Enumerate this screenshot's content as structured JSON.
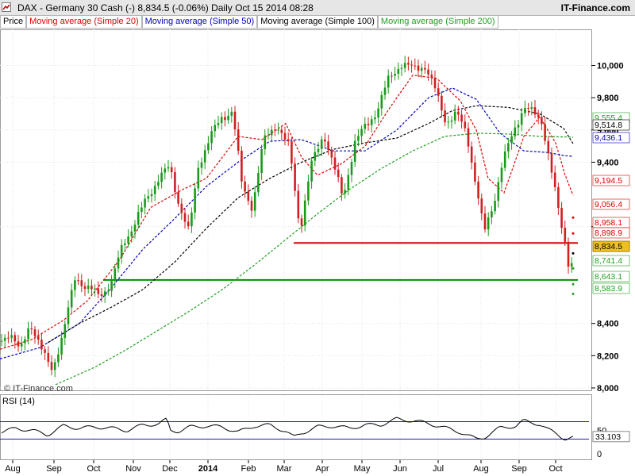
{
  "header": {
    "title": "DAX - Germany 30 Cash (-)    8,834.5 (-0.06%)    Daily  Oct 15 2014 08:28",
    "brand": "IT-Finance.com"
  },
  "legend": [
    {
      "label": "Price",
      "color": "#000000"
    },
    {
      "label": "Moving average (Simple 20)",
      "color": "#e00000"
    },
    {
      "label": "Moving average (Simple 50)",
      "color": "#0000c0"
    },
    {
      "label": "Moving average (Simple 100)",
      "color": "#000000"
    },
    {
      "label": "Moving average (Simple 200)",
      "color": "#20a020"
    }
  ],
  "watermark": "© IT-Finance.com",
  "rsi": {
    "label": "RSI (14)",
    "value_label": "33.103",
    "levels": [
      "50",
      "0"
    ]
  },
  "chart_data": {
    "type": "candlestick",
    "instrument": "DAX - Germany 30 Cash",
    "last": "8,834.5",
    "change": "-0.06%",
    "ylim": [
      8000,
      10150
    ],
    "yticks": [
      8000,
      8200,
      8400,
      9000,
      9400,
      9600,
      9800,
      10000
    ],
    "ytick_labels": [
      "8,000",
      "8,200",
      "8,400",
      "9,000",
      "9,400",
      "9,600",
      "9,800",
      "10,000"
    ],
    "xtick_labels": [
      "Aug",
      "Sep",
      "Oct",
      "Nov",
      "Dec",
      "2014",
      "Feb",
      "Mar",
      "Apr",
      "May",
      "Jun",
      "Jul",
      "Aug",
      "Sep",
      "Oct"
    ],
    "price": [
      [
        0,
        8290
      ],
      [
        12,
        8350
      ],
      [
        25,
        8220
      ],
      [
        38,
        8410
      ],
      [
        55,
        8200
      ],
      [
        66,
        8120
      ],
      [
        80,
        8340
      ],
      [
        95,
        8700
      ],
      [
        108,
        8620
      ],
      [
        125,
        8580
      ],
      [
        140,
        8640
      ],
      [
        155,
        8900
      ],
      [
        170,
        9020
      ],
      [
        185,
        9180
      ],
      [
        200,
        9300
      ],
      [
        214,
        9370
      ],
      [
        225,
        9150
      ],
      [
        238,
        8960
      ],
      [
        250,
        9380
      ],
      [
        265,
        9560
      ],
      [
        280,
        9680
      ],
      [
        293,
        9720
      ],
      [
        305,
        9250
      ],
      [
        318,
        9120
      ],
      [
        332,
        9530
      ],
      [
        348,
        9640
      ],
      [
        365,
        9480
      ],
      [
        378,
        8980
      ],
      [
        392,
        9380
      ],
      [
        408,
        9580
      ],
      [
        420,
        9380
      ],
      [
        432,
        9180
      ],
      [
        447,
        9520
      ],
      [
        460,
        9620
      ],
      [
        475,
        9720
      ],
      [
        490,
        9920
      ],
      [
        505,
        10010
      ],
      [
        520,
        9980
      ],
      [
        535,
        10000
      ],
      [
        548,
        9850
      ],
      [
        562,
        9650
      ],
      [
        575,
        9700
      ],
      [
        588,
        9580
      ],
      [
        600,
        9250
      ],
      [
        610,
        8960
      ],
      [
        622,
        9150
      ],
      [
        633,
        9400
      ],
      [
        648,
        9600
      ],
      [
        660,
        9750
      ],
      [
        672,
        9700
      ],
      [
        683,
        9650
      ],
      [
        693,
        9400
      ],
      [
        705,
        9050
      ],
      [
        713,
        8880
      ],
      [
        718,
        8720
      ],
      [
        722,
        8834.5
      ]
    ],
    "series": [
      {
        "name": "Moving average (Simple 20)",
        "color": "#e00000",
        "points": [
          [
            0,
            8240
          ],
          [
            40,
            8300
          ],
          [
            80,
            8420
          ],
          [
            110,
            8540
          ],
          [
            150,
            8790
          ],
          [
            190,
            9120
          ],
          [
            230,
            9230
          ],
          [
            260,
            9300
          ],
          [
            300,
            9560
          ],
          [
            330,
            9540
          ],
          [
            360,
            9640
          ],
          [
            380,
            9430
          ],
          [
            400,
            9320
          ],
          [
            430,
            9390
          ],
          [
            460,
            9500
          ],
          [
            490,
            9730
          ],
          [
            520,
            9940
          ],
          [
            550,
            9920
          ],
          [
            580,
            9780
          ],
          [
            600,
            9600
          ],
          [
            615,
            9300
          ],
          [
            635,
            9210
          ],
          [
            660,
            9560
          ],
          [
            680,
            9680
          ],
          [
            700,
            9520
          ],
          [
            712,
            9320
          ],
          [
            722,
            9194.5
          ]
        ]
      },
      {
        "name": "Moving average (Simple 50)",
        "color": "#0000c0",
        "points": [
          [
            0,
            8180
          ],
          [
            50,
            8250
          ],
          [
            100,
            8400
          ],
          [
            140,
            8620
          ],
          [
            180,
            8860
          ],
          [
            220,
            9050
          ],
          [
            260,
            9250
          ],
          [
            300,
            9400
          ],
          [
            340,
            9530
          ],
          [
            380,
            9540
          ],
          [
            420,
            9470
          ],
          [
            460,
            9470
          ],
          [
            500,
            9600
          ],
          [
            540,
            9800
          ],
          [
            570,
            9860
          ],
          [
            600,
            9790
          ],
          [
            630,
            9580
          ],
          [
            660,
            9470
          ],
          [
            690,
            9460
          ],
          [
            712,
            9440
          ],
          [
            722,
            9436.1
          ]
        ]
      },
      {
        "name": "Moving average (Simple 100)",
        "color": "#000000",
        "points": [
          [
            60,
            8280
          ],
          [
            100,
            8400
          ],
          [
            140,
            8500
          ],
          [
            180,
            8610
          ],
          [
            220,
            8780
          ],
          [
            260,
            8990
          ],
          [
            300,
            9180
          ],
          [
            340,
            9300
          ],
          [
            380,
            9400
          ],
          [
            420,
            9480
          ],
          [
            460,
            9520
          ],
          [
            500,
            9550
          ],
          [
            540,
            9640
          ],
          [
            570,
            9720
          ],
          [
            600,
            9750
          ],
          [
            640,
            9740
          ],
          [
            680,
            9700
          ],
          [
            710,
            9610
          ],
          [
            722,
            9514.8
          ]
        ]
      },
      {
        "name": "Moving average (Simple 200)",
        "color": "#20a020",
        "points": [
          [
            70,
            8020
          ],
          [
            120,
            8130
          ],
          [
            160,
            8240
          ],
          [
            200,
            8360
          ],
          [
            240,
            8480
          ],
          [
            280,
            8610
          ],
          [
            320,
            8760
          ],
          [
            360,
            8920
          ],
          [
            400,
            9080
          ],
          [
            440,
            9230
          ],
          [
            480,
            9360
          ],
          [
            520,
            9470
          ],
          [
            560,
            9560
          ],
          [
            600,
            9580
          ],
          [
            640,
            9575
          ],
          [
            680,
            9560
          ],
          [
            722,
            9555.4
          ]
        ]
      }
    ],
    "hlines": [
      {
        "value": 8898.9,
        "color": "#e00000",
        "x_from": 370
      },
      {
        "value": 8670,
        "color": "#009000",
        "x_from": 130
      }
    ],
    "price_labels": [
      {
        "label": "9,555.4",
        "color": "#20a020"
      },
      {
        "label": "9,514.8",
        "color": "#000000"
      },
      {
        "label": "9,436.1",
        "color": "#0000c0"
      },
      {
        "label": "9,194.5",
        "color": "#e00000"
      },
      {
        "label": "9,056.4",
        "color": "#e00000"
      },
      {
        "label": "8,958.1",
        "color": "#e00000"
      },
      {
        "label": "8,898.9",
        "color": "#e00000"
      },
      {
        "label": "8,834.5",
        "color": "#000000",
        "bg": "#f0c020"
      },
      {
        "label": "8,741.4",
        "color": "#20a020"
      },
      {
        "label": "8,643.1",
        "color": "#20a020"
      },
      {
        "label": "8,583.9",
        "color": "#20a020"
      }
    ],
    "rsi_values": [
      [
        0,
        45
      ],
      [
        20,
        55
      ],
      [
        40,
        50
      ],
      [
        60,
        40
      ],
      [
        80,
        60
      ],
      [
        100,
        55
      ],
      [
        120,
        58
      ],
      [
        140,
        55
      ],
      [
        160,
        50
      ],
      [
        180,
        62
      ],
      [
        200,
        65
      ],
      [
        210,
        75
      ],
      [
        215,
        50
      ],
      [
        225,
        48
      ],
      [
        240,
        58
      ],
      [
        260,
        60
      ],
      [
        280,
        58
      ],
      [
        300,
        46
      ],
      [
        320,
        60
      ],
      [
        340,
        62
      ],
      [
        360,
        48
      ],
      [
        370,
        34
      ],
      [
        380,
        44
      ],
      [
        400,
        58
      ],
      [
        420,
        60
      ],
      [
        440,
        55
      ],
      [
        460,
        62
      ],
      [
        480,
        63
      ],
      [
        500,
        76
      ],
      [
        520,
        72
      ],
      [
        540,
        66
      ],
      [
        560,
        56
      ],
      [
        580,
        46
      ],
      [
        600,
        30
      ],
      [
        610,
        34
      ],
      [
        630,
        56
      ],
      [
        650,
        60
      ],
      [
        660,
        72
      ],
      [
        680,
        64
      ],
      [
        690,
        52
      ],
      [
        700,
        44
      ],
      [
        712,
        30
      ],
      [
        722,
        33.103
      ]
    ]
  }
}
